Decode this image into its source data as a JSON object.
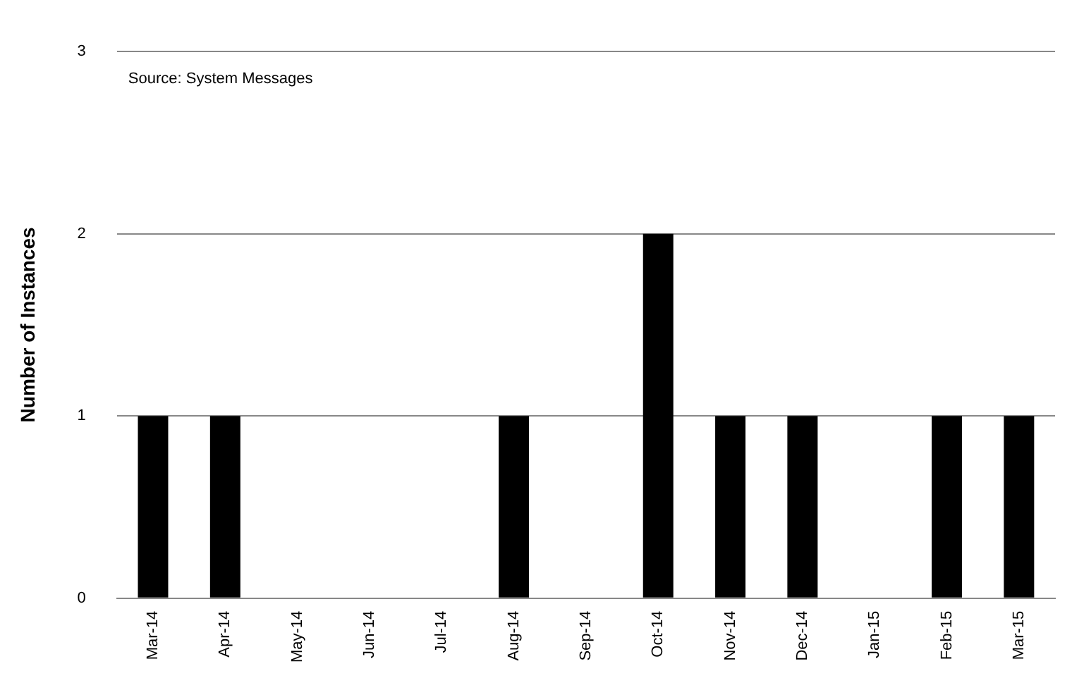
{
  "chart_data": {
    "type": "bar",
    "ylabel": "Number of Instances",
    "annotations": [
      "Source: System Messages"
    ],
    "categories": [
      "Mar-14",
      "Apr-14",
      "May-14",
      "Jun-14",
      "Jul-14",
      "Aug-14",
      "Sep-14",
      "Oct-14",
      "Nov-14",
      "Dec-14",
      "Jan-15",
      "Feb-15",
      "Mar-15"
    ],
    "values": [
      1,
      1,
      0,
      0,
      0,
      1,
      0,
      2,
      1,
      1,
      0,
      1,
      1
    ],
    "color": "#000000",
    "ylim": [
      0,
      3
    ],
    "yticks": [
      0,
      1,
      2,
      3
    ],
    "grid": "y",
    "legend": false
  }
}
